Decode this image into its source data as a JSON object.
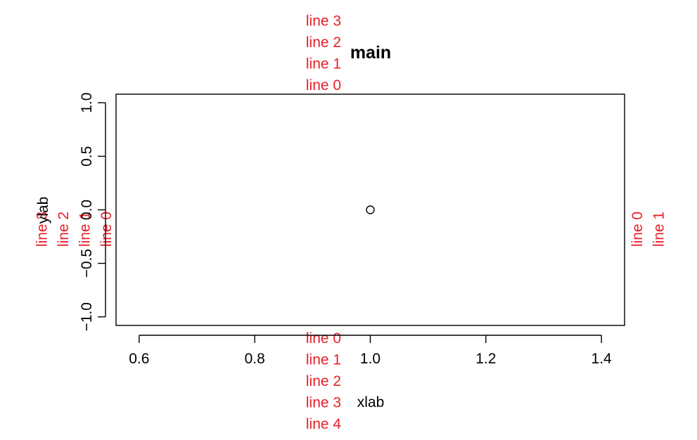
{
  "chart_data": {
    "type": "scatter",
    "title": "main",
    "xlabel": "xlab",
    "ylabel": "ylab",
    "xlim": [
      0.56,
      1.44
    ],
    "ylim": [
      -1.08,
      1.08
    ],
    "x_ticks": [
      0.6,
      0.8,
      1.0,
      1.2,
      1.4
    ],
    "x_tick_labels": [
      "0.6",
      "0.8",
      "1.0",
      "1.2",
      "1.4"
    ],
    "y_ticks": [
      -1.0,
      -0.5,
      0.0,
      0.5,
      1.0
    ],
    "y_tick_labels": [
      "−1.0",
      "−0.5",
      "0.0",
      "0.5",
      "1.0"
    ],
    "points": [
      {
        "x": 1.0,
        "y": 0.0
      }
    ],
    "grid": false,
    "legend": "none",
    "margin_color": "#e8202a",
    "margin_text": {
      "top": [
        "line 0",
        "line 1",
        "line 2",
        "line 3"
      ],
      "bottom": [
        "line 0",
        "line 1",
        "line 2",
        "line 3",
        "line 4"
      ],
      "left": [
        "line 0",
        "line 1",
        "line 2",
        "line 3"
      ],
      "right": [
        "line 0",
        "line 1"
      ]
    }
  }
}
